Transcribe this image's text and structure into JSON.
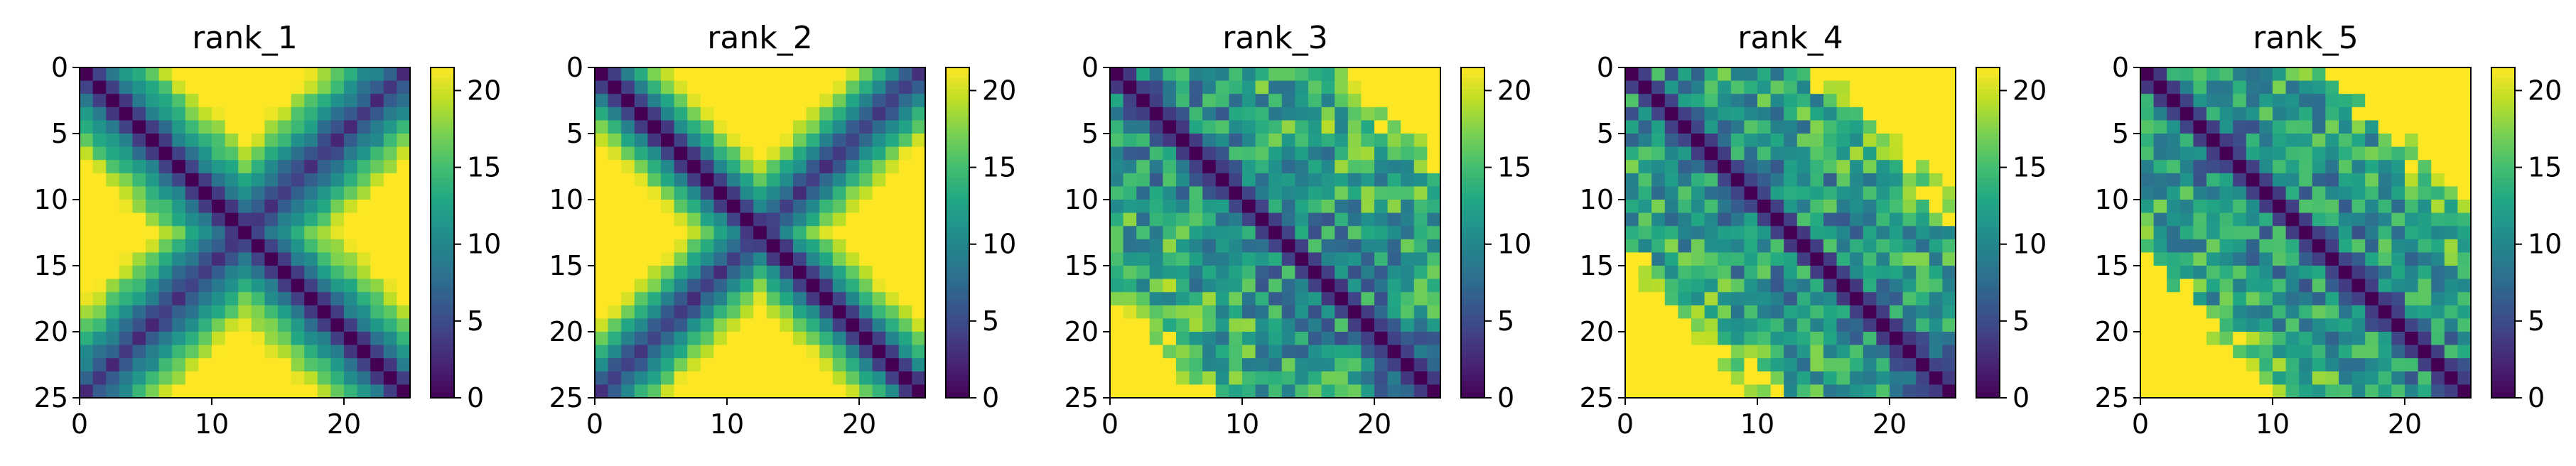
{
  "chart_data": [
    {
      "type": "heatmap",
      "title": "rank_1",
      "pattern": "rank_1",
      "xlim": [
        0,
        25
      ],
      "ylim": [
        25,
        0
      ],
      "xticks": [
        0,
        10,
        20
      ],
      "yticks": [
        0,
        5,
        10,
        15,
        20,
        25
      ],
      "colorbar": {
        "colormap": "viridis",
        "range": [
          0,
          21.5
        ],
        "ticks": [
          0,
          5,
          10,
          15,
          20
        ]
      }
    },
    {
      "type": "heatmap",
      "title": "rank_2",
      "pattern": "rank_2",
      "xlim": [
        0,
        25
      ],
      "ylim": [
        25,
        0
      ],
      "xticks": [
        0,
        10,
        20
      ],
      "yticks": [
        0,
        5,
        10,
        15,
        20,
        25
      ],
      "colorbar": {
        "colormap": "viridis",
        "range": [
          0,
          21.5
        ],
        "ticks": [
          0,
          5,
          10,
          15,
          20
        ]
      }
    },
    {
      "type": "heatmap",
      "title": "rank_3",
      "pattern": "rank_3",
      "xlim": [
        0,
        25
      ],
      "ylim": [
        25,
        0
      ],
      "xticks": [
        0,
        10,
        20
      ],
      "yticks": [
        0,
        5,
        10,
        15,
        20,
        25
      ],
      "colorbar": {
        "colormap": "viridis",
        "range": [
          0,
          21.5
        ],
        "ticks": [
          0,
          5,
          10,
          15,
          20
        ]
      }
    },
    {
      "type": "heatmap",
      "title": "rank_4",
      "pattern": "rank_4",
      "xlim": [
        0,
        25
      ],
      "ylim": [
        25,
        0
      ],
      "xticks": [
        0,
        10,
        20
      ],
      "yticks": [
        0,
        5,
        10,
        15,
        20,
        25
      ],
      "colorbar": {
        "colormap": "viridis",
        "range": [
          0,
          21.5
        ],
        "ticks": [
          0,
          5,
          10,
          15,
          20
        ]
      }
    },
    {
      "type": "heatmap",
      "title": "rank_5",
      "pattern": "rank_5",
      "xlim": [
        0,
        25
      ],
      "ylim": [
        25,
        0
      ],
      "xticks": [
        0,
        10,
        20
      ],
      "yticks": [
        0,
        5,
        10,
        15,
        20,
        25
      ],
      "colorbar": {
        "colormap": "viridis",
        "range": [
          0,
          21.5
        ],
        "ticks": [
          0,
          5,
          10,
          15,
          20
        ]
      }
    }
  ]
}
